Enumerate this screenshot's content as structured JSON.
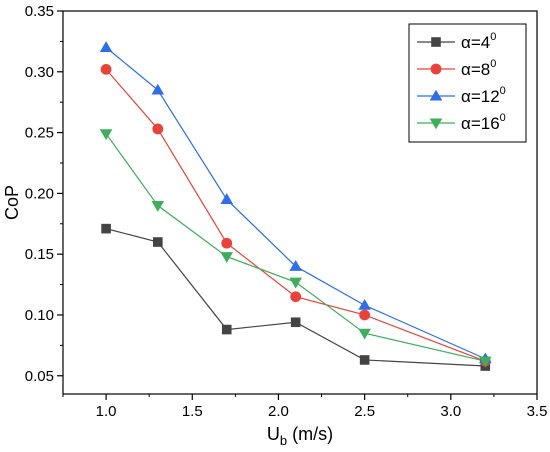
{
  "chart_data": {
    "type": "line",
    "xlabel": "U",
    "xlabel_subscript": "b",
    "xlabel_unit": " (m/s)",
    "ylabel": "CoP",
    "xlim": [
      0.75,
      3.5
    ],
    "ylim": [
      0.035,
      0.35
    ],
    "xticks": [
      1.0,
      1.5,
      2.0,
      2.5,
      3.0,
      3.5
    ],
    "xtick_labels": [
      "1.0",
      "1.5",
      "2.0",
      "2.5",
      "3.0",
      "3.5"
    ],
    "yticks": [
      0.05,
      0.1,
      0.15,
      0.2,
      0.25,
      0.3,
      0.35
    ],
    "ytick_labels": [
      "0.05",
      "0.10",
      "0.15",
      "0.20",
      "0.25",
      "0.30",
      "0.35"
    ],
    "grid": false,
    "legend_position": "top-right",
    "x": [
      1.0,
      1.3,
      1.7,
      2.1,
      2.5,
      3.2
    ],
    "series": [
      {
        "name": "α=4",
        "superscript": "0",
        "color": "#444444",
        "marker": "square",
        "values": [
          0.171,
          0.16,
          0.088,
          0.094,
          0.063,
          0.058
        ]
      },
      {
        "name": "α=8",
        "superscript": "0",
        "color": "#e8423a",
        "marker": "circle",
        "values": [
          0.302,
          0.253,
          0.159,
          0.115,
          0.1,
          0.062
        ]
      },
      {
        "name": "α=12",
        "superscript": "0",
        "color": "#2f6ee6",
        "marker": "triangle-up",
        "values": [
          0.32,
          0.285,
          0.195,
          0.14,
          0.108,
          0.064
        ]
      },
      {
        "name": "α=16",
        "superscript": "0",
        "color": "#3fad5b",
        "marker": "triangle-down",
        "values": [
          0.249,
          0.19,
          0.148,
          0.127,
          0.085,
          0.062
        ]
      }
    ]
  }
}
